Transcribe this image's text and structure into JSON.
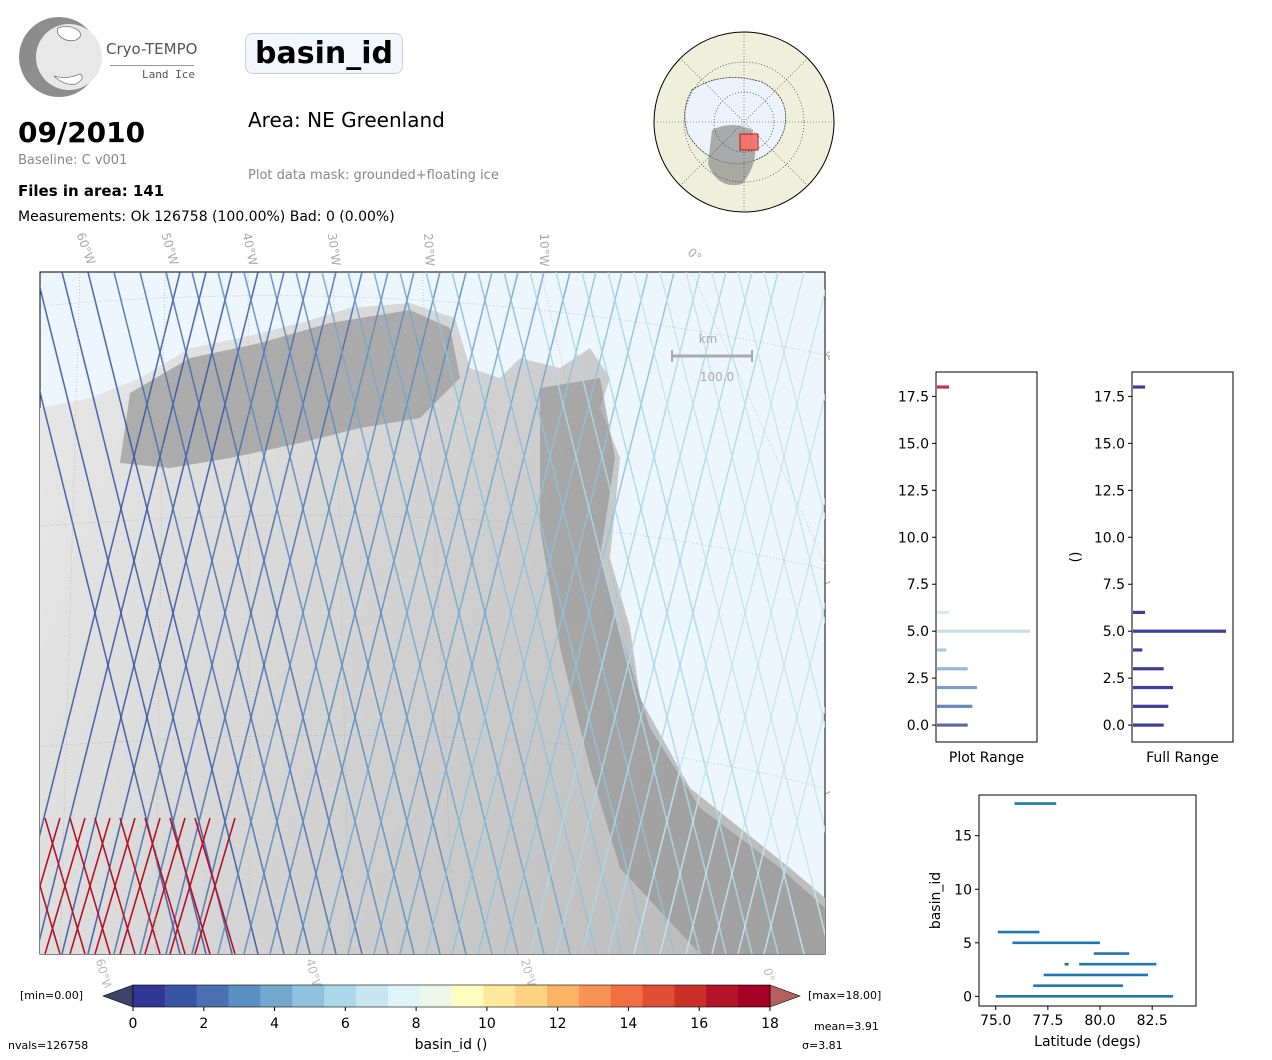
{
  "logo": {
    "name": "Cryo-TEMPO",
    "subtitle": "Land Ice"
  },
  "header": {
    "parameter": "basin_id",
    "date": "09/2010",
    "baseline": "Baseline: C v001",
    "files": "Files in area: 141",
    "measurements": "Measurements: Ok 126758 (100.00%) Bad: 0 (0.00%)",
    "area": "Area: NE Greenland",
    "mask": "Plot data mask: grounded+floating ice"
  },
  "map": {
    "lon_labels": [
      "60°W",
      "50°W",
      "40°W",
      "30°W",
      "20°W",
      "10°W",
      "0°"
    ],
    "lat_labels": [
      "80°N",
      "78°N",
      "76°N"
    ],
    "bottom_lon_labels": [
      "60°W",
      "40°W",
      "20°W",
      "0°"
    ],
    "scalebar": {
      "unit": "km",
      "value": "100.0"
    },
    "colors": {
      "ocean": "#eef6fd",
      "land_light": "#e2e2e2",
      "land_dark": "#8a8a8a"
    }
  },
  "colorbar": {
    "min_label": "[min=0.00]",
    "max_label": "[max=18.00]",
    "ticks": [
      "0",
      "2",
      "4",
      "6",
      "8",
      "10",
      "12",
      "14",
      "16",
      "18"
    ],
    "xlabel": "basin_id ()",
    "colors": [
      "#313695",
      "#3a54a4",
      "#4a70b2",
      "#5b8ec1",
      "#74a8cf",
      "#8fc3dd",
      "#abd9e9",
      "#c6e5ef",
      "#e0f3f8",
      "#eef8ea",
      "#ffffbf",
      "#fee99d",
      "#fed283",
      "#fdb366",
      "#f99255",
      "#f36e43",
      "#e04e35",
      "#ca3027",
      "#b51328",
      "#a50026"
    ],
    "under_color": "#3d4269",
    "over_color": "#b4605c"
  },
  "stats": {
    "nvals": "nvals=126758",
    "mean": "mean=3.91",
    "sigma": "σ=3.81"
  },
  "chart_data": [
    {
      "type": "bar",
      "orientation": "horizontal",
      "xlabel": "Plot Range",
      "ylabel": "",
      "ylim": [
        -0.9,
        18.8
      ],
      "yticks": [
        "0.0",
        "2.5",
        "5.0",
        "7.5",
        "10.0",
        "12.5",
        "15.0",
        "17.5"
      ],
      "categories": [
        0,
        1,
        2,
        3,
        4,
        5,
        6,
        18
      ],
      "values": [
        0.33,
        0.38,
        0.43,
        0.33,
        0.1,
        1.0,
        0.13,
        0.13
      ],
      "bar_colors": [
        "#5a6aa8",
        "#6d85b8",
        "#7e9dc8",
        "#93b8d8",
        "#a8cce2",
        "#c6e1ea",
        "#d6ebf1",
        "#c0324a"
      ]
    },
    {
      "type": "bar",
      "orientation": "horizontal",
      "xlabel": "Full Range",
      "ylabel": "()",
      "ylim": [
        -0.9,
        18.8
      ],
      "yticks": [
        "0.0",
        "2.5",
        "5.0",
        "7.5",
        "10.0",
        "12.5",
        "15.0",
        "17.5"
      ],
      "categories": [
        0,
        1,
        2,
        3,
        4,
        5,
        6,
        18
      ],
      "values": [
        0.33,
        0.38,
        0.43,
        0.33,
        0.1,
        1.0,
        0.13,
        0.13
      ],
      "bar_color": "#3d3d9a"
    },
    {
      "type": "scatter",
      "xlabel": "Latitude (degs)",
      "ylabel": "basin_id",
      "xlim": [
        74.2,
        84.6
      ],
      "ylim": [
        -0.9,
        18.8
      ],
      "xticks": [
        "75.0",
        "77.5",
        "80.0",
        "82.5"
      ],
      "yticks": [
        "0",
        "5",
        "10",
        "15"
      ],
      "color": "#1f77b4",
      "segments": [
        {
          "y": 0,
          "x0": 75.0,
          "x1": 83.5
        },
        {
          "y": 1,
          "x0": 76.8,
          "x1": 81.1
        },
        {
          "y": 2,
          "x0": 77.3,
          "x1": 82.3
        },
        {
          "y": 3,
          "x0": 79.0,
          "x1": 82.7
        },
        {
          "y": 3,
          "x0": 78.3,
          "x1": 78.5
        },
        {
          "y": 4,
          "x0": 79.7,
          "x1": 81.4
        },
        {
          "y": 5,
          "x0": 75.8,
          "x1": 80.0
        },
        {
          "y": 6,
          "x0": 75.1,
          "x1": 77.1
        },
        {
          "y": 18,
          "x0": 75.9,
          "x1": 77.9
        }
      ]
    }
  ]
}
